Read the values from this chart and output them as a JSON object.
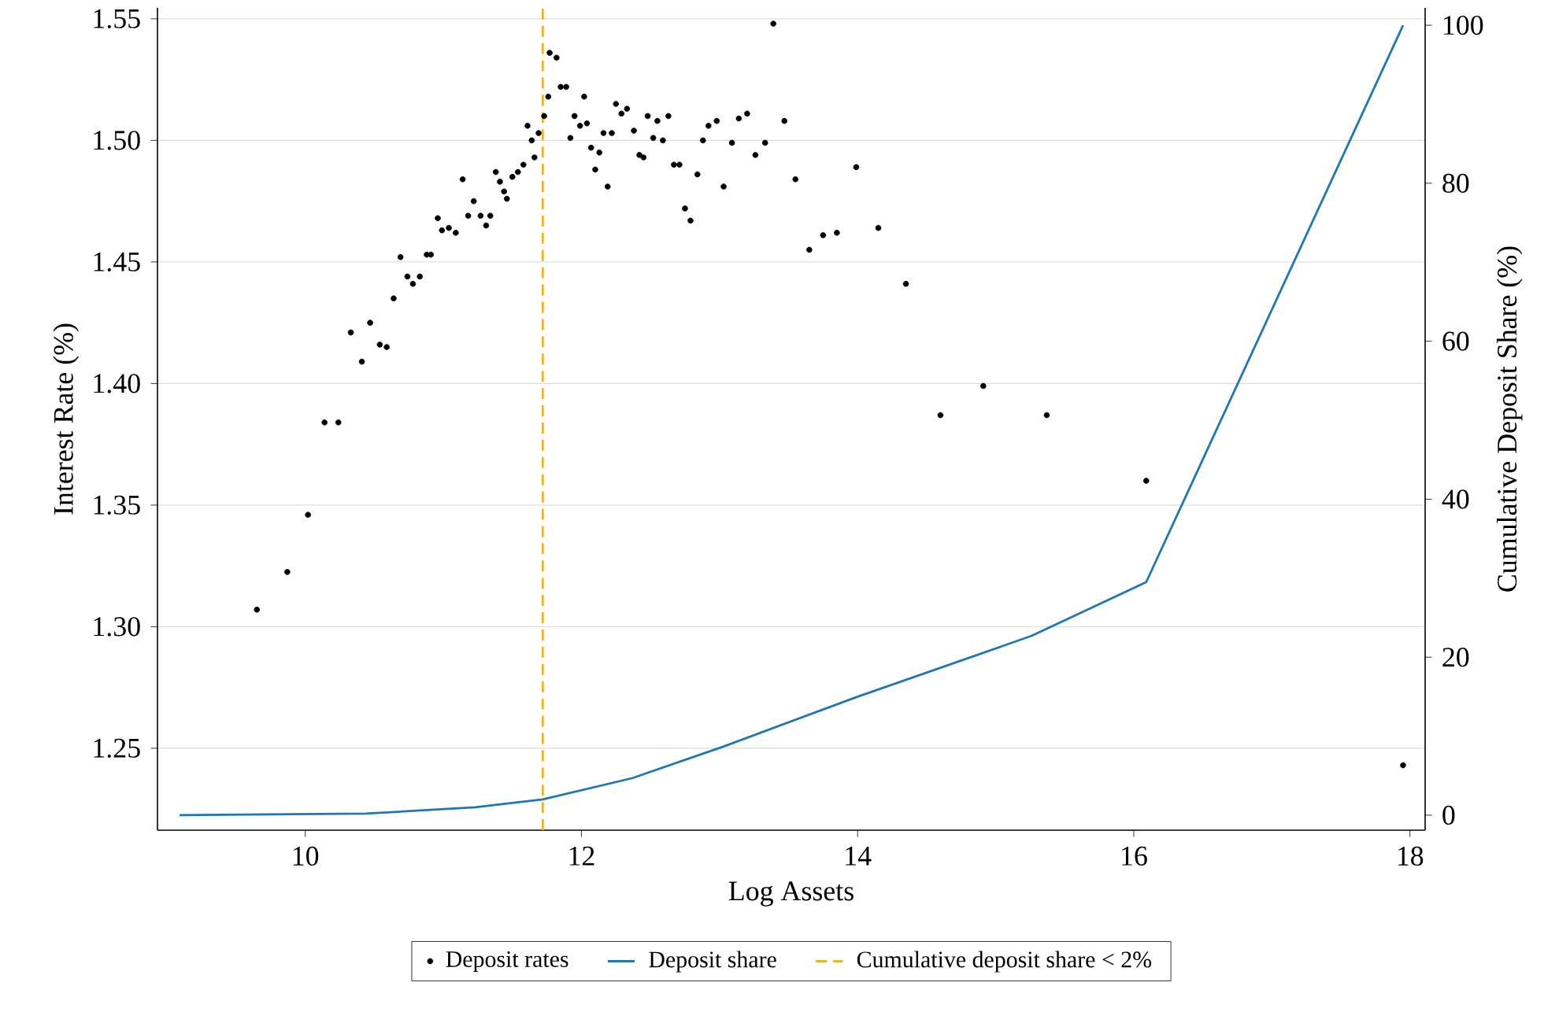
{
  "chart_data": {
    "type": "scatter",
    "xlabel": "Log Assets",
    "ylabel": "Interest Rate (%)",
    "y2label": "Cumulative Deposit Share (%)",
    "xlim": [
      8.93,
      18.11
    ],
    "xticks": [
      10,
      12,
      14,
      16,
      18
    ],
    "ylim": [
      1.2163,
      1.5545
    ],
    "yticks": [
      {
        "value": 1.25,
        "label": "1.25"
      },
      {
        "value": 1.3,
        "label": "1.30"
      },
      {
        "value": 1.35,
        "label": "1.35"
      },
      {
        "value": 1.4,
        "label": "1.40"
      },
      {
        "value": 1.45,
        "label": "1.45"
      },
      {
        "value": 1.5,
        "label": "1.50"
      },
      {
        "value": 1.55,
        "label": "1.55"
      }
    ],
    "y2lim": [
      -1.9,
      102.2
    ],
    "y2ticks": [
      0,
      20,
      40,
      60,
      80,
      100
    ],
    "grid": "y",
    "legend": "bottom",
    "series": [
      {
        "name": "Deposit rates",
        "marker": "circle",
        "color": "#000000",
        "x": [
          9.65,
          9.87,
          10.02,
          10.14,
          10.24,
          10.33,
          10.41,
          10.47,
          10.54,
          10.59,
          10.64,
          10.69,
          10.74,
          10.78,
          10.83,
          10.88,
          10.91,
          10.96,
          10.99,
          11.04,
          11.09,
          11.14,
          11.18,
          11.22,
          11.27,
          11.31,
          11.34,
          11.38,
          11.41,
          11.44,
          11.46,
          11.5,
          11.54,
          11.58,
          11.61,
          11.64,
          11.66,
          11.69,
          11.73,
          11.76,
          11.77,
          11.82,
          11.85,
          11.89,
          11.92,
          11.95,
          11.99,
          12.02,
          12.04,
          12.07,
          12.1,
          12.13,
          12.16,
          12.19,
          12.22,
          12.25,
          12.29,
          12.33,
          12.38,
          12.42,
          12.45,
          12.48,
          12.52,
          12.55,
          12.59,
          12.63,
          12.67,
          12.71,
          12.75,
          12.79,
          12.84,
          12.88,
          12.92,
          12.98,
          13.03,
          13.09,
          13.14,
          13.2,
          13.26,
          13.33,
          13.39,
          13.47,
          13.55,
          13.65,
          13.75,
          13.85,
          13.99,
          14.15,
          14.35,
          14.6,
          14.91,
          15.37,
          16.09,
          17.95
        ],
        "values": [
          1.307,
          1.3225,
          1.346,
          1.384,
          1.384,
          1.421,
          1.409,
          1.425,
          1.416,
          1.415,
          1.435,
          1.452,
          1.444,
          1.441,
          1.444,
          1.453,
          1.453,
          1.468,
          1.463,
          1.464,
          1.462,
          1.484,
          1.469,
          1.475,
          1.469,
          1.465,
          1.469,
          1.487,
          1.483,
          1.479,
          1.476,
          1.485,
          1.487,
          1.49,
          1.506,
          1.5,
          1.493,
          1.503,
          1.51,
          1.518,
          1.536,
          1.534,
          1.522,
          1.522,
          1.501,
          1.51,
          1.506,
          1.518,
          1.507,
          1.497,
          1.488,
          1.495,
          1.503,
          1.481,
          1.503,
          1.515,
          1.511,
          1.513,
          1.504,
          1.494,
          1.493,
          1.51,
          1.501,
          1.508,
          1.5,
          1.51,
          1.49,
          1.49,
          1.472,
          1.467,
          1.486,
          1.5,
          1.506,
          1.508,
          1.481,
          1.499,
          1.509,
          1.511,
          1.494,
          1.499,
          1.548,
          1.508,
          1.484,
          1.455,
          1.461,
          1.462,
          1.489,
          1.464,
          1.441,
          1.387,
          1.399,
          1.387,
          1.36,
          1.243
        ]
      },
      {
        "name": "Deposit share",
        "type": "line",
        "axis": "y2",
        "marker": "none",
        "line_style": "solid",
        "color": "#1f77b4",
        "x": [
          9.09,
          10.44,
          11.23,
          11.72,
          12.37,
          13.03,
          14.0,
          15.26,
          16.09,
          17.95
        ],
        "values": [
          0,
          0.2,
          1.0,
          2.0,
          4.7,
          8.7,
          15.0,
          22.7,
          29.5,
          100
        ]
      }
    ],
    "ref_lines": [
      {
        "axis": "x",
        "value": 11.72,
        "label": "Cumulative deposit share < 2%",
        "color": "#e8b42a",
        "line_style": "dashed"
      }
    ]
  }
}
